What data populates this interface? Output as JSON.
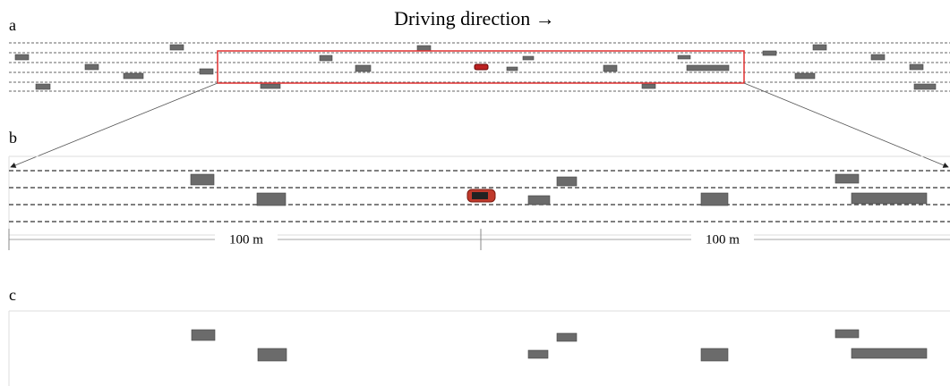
{
  "panels": [
    {
      "label": "a"
    },
    {
      "label": "b"
    },
    {
      "label": "c"
    }
  ],
  "title": "Driving direction →",
  "distances": [
    "100 m",
    "100 m"
  ]
}
